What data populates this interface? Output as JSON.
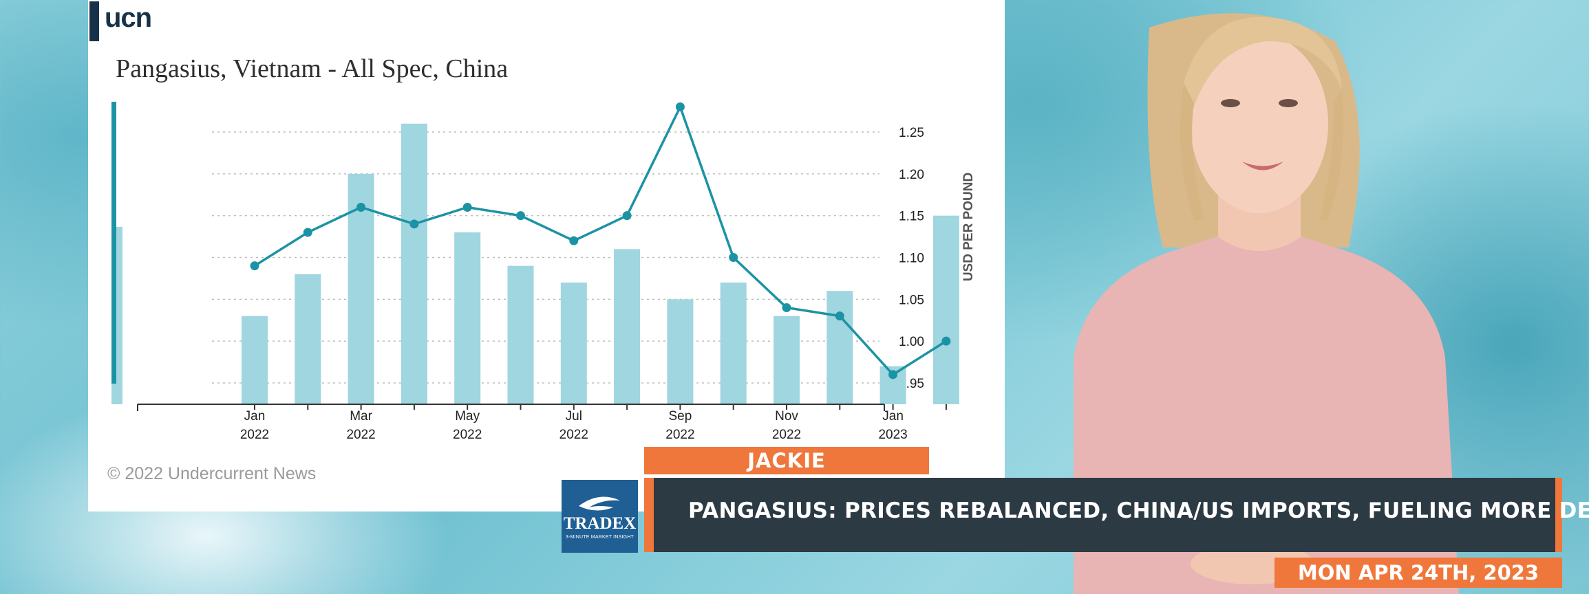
{
  "logo": {
    "text": "ucn"
  },
  "copyright": "© 2022 Undercurrent News",
  "lower_third": {
    "presenter_name": "JACKIE",
    "headline": "PANGASIUS: PRICES REBALANCED, CHINA/US IMPORTS, FUELING MORE DEMAND",
    "date": "MON APR 24TH, 2023",
    "brand": "TRADEX",
    "brand_tagline": "3-MINUTE MARKET INSIGHT"
  },
  "colors": {
    "bar": "#9fd6e0",
    "line": "#1b93a4",
    "accent_orange": "#f0773b",
    "headline_bg": "#2c3a44",
    "brand_blue": "#1f5f94"
  },
  "chart_data": {
    "type": "bar",
    "title": "Pangasius, Vietnam - All Spec, China",
    "ylabel": "USD PER POUND",
    "ylim": [
      0.93,
      1.285
    ],
    "yticks": [
      "1.25",
      "1.20",
      "1.15",
      "1.10",
      "1.05",
      "1.00",
      "0.95"
    ],
    "ytick_values": [
      1.25,
      1.2,
      1.15,
      1.1,
      1.05,
      1.0,
      0.95
    ],
    "xticks": [
      {
        "month": "Jan",
        "year": "2022",
        "index": 0
      },
      {
        "month": "Mar",
        "year": "2022",
        "index": 2
      },
      {
        "month": "May",
        "year": "2022",
        "index": 4
      },
      {
        "month": "Jul",
        "year": "2022",
        "index": 6
      },
      {
        "month": "Sep",
        "year": "2022",
        "index": 8
      },
      {
        "month": "Nov",
        "year": "2022",
        "index": 10
      },
      {
        "month": "Jan",
        "year": "2023",
        "index": 12
      }
    ],
    "categories": [
      "Jan 2022",
      "Feb 2022",
      "Mar 2022",
      "Apr 2022",
      "May 2022",
      "Jun 2022",
      "Jul 2022",
      "Aug 2022",
      "Sep 2022",
      "Oct 2022",
      "Nov 2022",
      "Dec 2022",
      "Jan 2023",
      "Feb 2023"
    ],
    "series": [
      {
        "type": "bar",
        "values": [
          1.03,
          1.08,
          1.2,
          1.26,
          1.13,
          1.09,
          1.07,
          1.11,
          1.05,
          1.07,
          1.03,
          1.06,
          0.97,
          1.15
        ]
      },
      {
        "type": "line",
        "values": [
          1.09,
          1.13,
          1.16,
          1.14,
          1.16,
          1.15,
          1.12,
          1.15,
          1.28,
          1.1,
          1.04,
          1.03,
          0.96,
          1.0
        ]
      }
    ],
    "grid": true
  }
}
